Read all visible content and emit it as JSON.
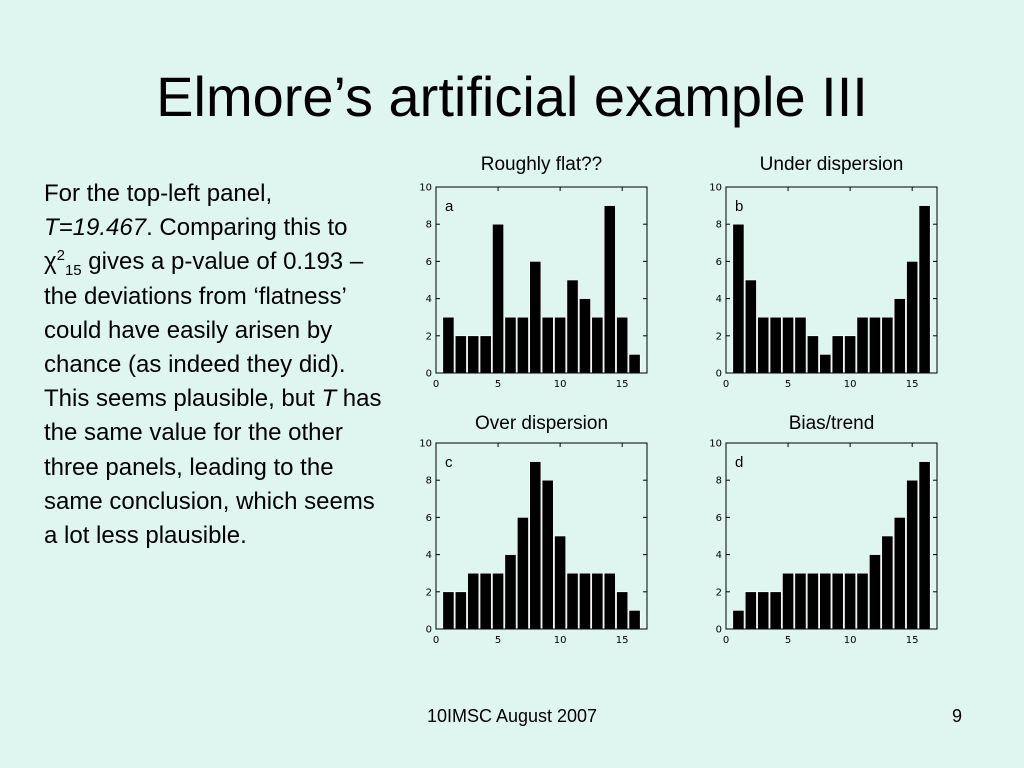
{
  "slide": {
    "title": "Elmore’s artificial example III",
    "body": {
      "p1": "For the top-left panel,",
      "t_value": "T=19.467",
      "p2": ". Comparing this to ",
      "chi": "χ",
      "chi_sup": "2",
      "chi_sub": "15",
      "p3": " gives a p-value of 0.193 – the deviations from ‘flatness’ could have easily arisen by chance (as indeed they did). This seems plausible, but ",
      "t_italic": "T",
      "p4": " has the same value for the other three panels, leading to the same conclusion, which seems a lot less plausible."
    },
    "footer": {
      "center": "10IMSC August 2007",
      "page": "9"
    }
  },
  "chart_data": [
    {
      "type": "bar",
      "title": "Roughly flat??",
      "label": "a",
      "x": [
        1,
        2,
        3,
        4,
        5,
        6,
        7,
        8,
        9,
        10,
        11,
        12,
        13,
        14,
        15,
        16
      ],
      "values": [
        3,
        2,
        2,
        2,
        8,
        3,
        3,
        6,
        3,
        3,
        5,
        4,
        3,
        9,
        3,
        1
      ],
      "xlim": [
        0,
        17
      ],
      "ylim": [
        0,
        10
      ],
      "xticks": [
        0,
        5,
        10,
        15
      ],
      "yticks": [
        0,
        2,
        4,
        6,
        8,
        10
      ]
    },
    {
      "type": "bar",
      "title": "Under dispersion",
      "label": "b",
      "x": [
        1,
        2,
        3,
        4,
        5,
        6,
        7,
        8,
        9,
        10,
        11,
        12,
        13,
        14,
        15,
        16
      ],
      "values": [
        8,
        5,
        3,
        3,
        3,
        3,
        2,
        1,
        2,
        2,
        3,
        3,
        3,
        4,
        6,
        9
      ],
      "xlim": [
        0,
        17
      ],
      "ylim": [
        0,
        10
      ],
      "xticks": [
        0,
        5,
        10,
        15
      ],
      "yticks": [
        0,
        2,
        4,
        6,
        8,
        10
      ]
    },
    {
      "type": "bar",
      "title": "Over dispersion",
      "label": "c",
      "x": [
        1,
        2,
        3,
        4,
        5,
        6,
        7,
        8,
        9,
        10,
        11,
        12,
        13,
        14,
        15,
        16
      ],
      "values": [
        2,
        2,
        3,
        3,
        3,
        4,
        6,
        9,
        8,
        5,
        3,
        3,
        3,
        3,
        2,
        1
      ],
      "xlim": [
        0,
        17
      ],
      "ylim": [
        0,
        10
      ],
      "xticks": [
        0,
        5,
        10,
        15
      ],
      "yticks": [
        0,
        2,
        4,
        6,
        8,
        10
      ]
    },
    {
      "type": "bar",
      "title": "Bias/trend",
      "label": "d",
      "x": [
        1,
        2,
        3,
        4,
        5,
        6,
        7,
        8,
        9,
        10,
        11,
        12,
        13,
        14,
        15,
        16
      ],
      "values": [
        1,
        2,
        2,
        2,
        3,
        3,
        3,
        3,
        3,
        3,
        3,
        4,
        5,
        6,
        8,
        9
      ],
      "xlim": [
        0,
        17
      ],
      "ylim": [
        0,
        10
      ],
      "xticks": [
        0,
        5,
        10,
        15
      ],
      "yticks": [
        0,
        2,
        4,
        6,
        8,
        10
      ]
    }
  ]
}
